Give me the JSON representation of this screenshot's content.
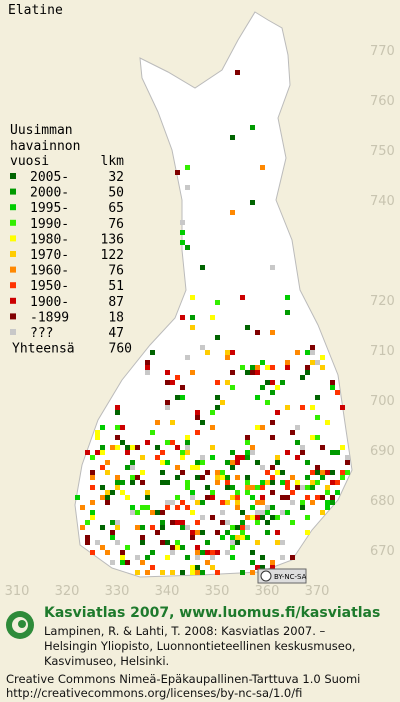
{
  "title": "Elatine",
  "legend": {
    "heading": [
      "Uusimman",
      "havainnon"
    ],
    "year_header": "vuosi",
    "count_header": "lkm",
    "rows": [
      {
        "label": "2005-",
        "count": 32,
        "color": "#006400"
      },
      {
        "label": "2000-",
        "count": 50,
        "color": "#009a00"
      },
      {
        "label": "1995-",
        "count": 65,
        "color": "#00cc00"
      },
      {
        "label": "1990-",
        "count": 76,
        "color": "#33ee00"
      },
      {
        "label": "1980-",
        "count": 136,
        "color": "#ffff00"
      },
      {
        "label": "1970-",
        "count": 122,
        "color": "#ffcc00"
      },
      {
        "label": "1960-",
        "count": 76,
        "color": "#ff8800"
      },
      {
        "label": "1950-",
        "count": 51,
        "color": "#ff3300"
      },
      {
        "label": "1900-",
        "count": 87,
        "color": "#cc0000"
      },
      {
        "label": "-1899",
        "count": 18,
        "color": "#800000"
      },
      {
        "label": "???",
        "count": 47,
        "color": "#c8c8c8"
      }
    ],
    "total_label": "Yhteensä",
    "total": 760
  },
  "grid": {
    "x_labels": [
      310,
      320,
      330,
      340,
      350,
      360,
      370
    ],
    "y_labels": [
      770,
      760,
      750,
      740,
      720,
      710,
      700,
      690,
      680,
      670
    ]
  },
  "badge": "BY-NC-SA",
  "footer": {
    "site": "Kasviatlas 2007, www.luomus.fi/kasviatlas",
    "citation": [
      "Lampinen, R. & Lahti, T. 2008: Kasviatlas 2007. –",
      "Helsingin Yliopisto, Luonnontieteellinen keskusmuseo,",
      "Kasvimuseo, Helsinki."
    ],
    "license": [
      "Creative Commons Nimeä-Epäkaupallinen-Tarttuva 1.0 Suomi",
      "http://creativecommons.org/licenses/by-nc-sa/1.0/fi"
    ]
  }
}
